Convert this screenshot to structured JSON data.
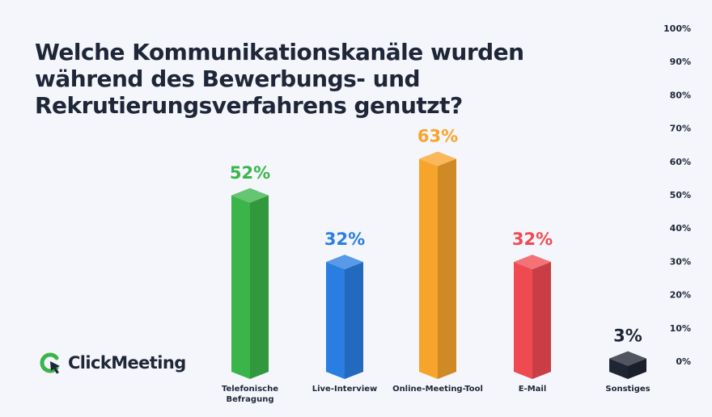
{
  "title": "Welche Kommunikationskanäle wurden während des Bewerbungs- und Rekrutierungsverfahrens genutzt?",
  "brand": {
    "name": "ClickMeeting",
    "icon": "clickmeeting-logo-icon"
  },
  "chart_data": {
    "type": "bar",
    "title": "Welche Kommunikationskanäle wurden während des Bewerbungs- und Rekrutierungsverfahrens genutzt?",
    "categories": [
      [
        "Telefonische",
        "Befragung"
      ],
      [
        "Live-Interview"
      ],
      [
        "Online-Meeting-Tool"
      ],
      [
        "E-Mail"
      ],
      [
        "Sonstiges"
      ]
    ],
    "values": [
      52,
      32,
      63,
      32,
      3
    ],
    "value_labels": [
      "52%",
      "32%",
      "63%",
      "32%",
      "3%"
    ],
    "colors": [
      "#3bb54a",
      "#2a7de1",
      "#f7a42c",
      "#ef4a52",
      "#1f2533"
    ],
    "ylim": [
      0,
      100
    ],
    "yticks": [
      0,
      10,
      20,
      30,
      40,
      50,
      60,
      70,
      80,
      90,
      100
    ],
    "ytick_labels": [
      "0%",
      "10%",
      "20%",
      "30%",
      "40%",
      "50%",
      "60%",
      "70%",
      "80%",
      "90%",
      "100%"
    ],
    "y_axis_side": "right",
    "grid": false,
    "legend": "none"
  }
}
